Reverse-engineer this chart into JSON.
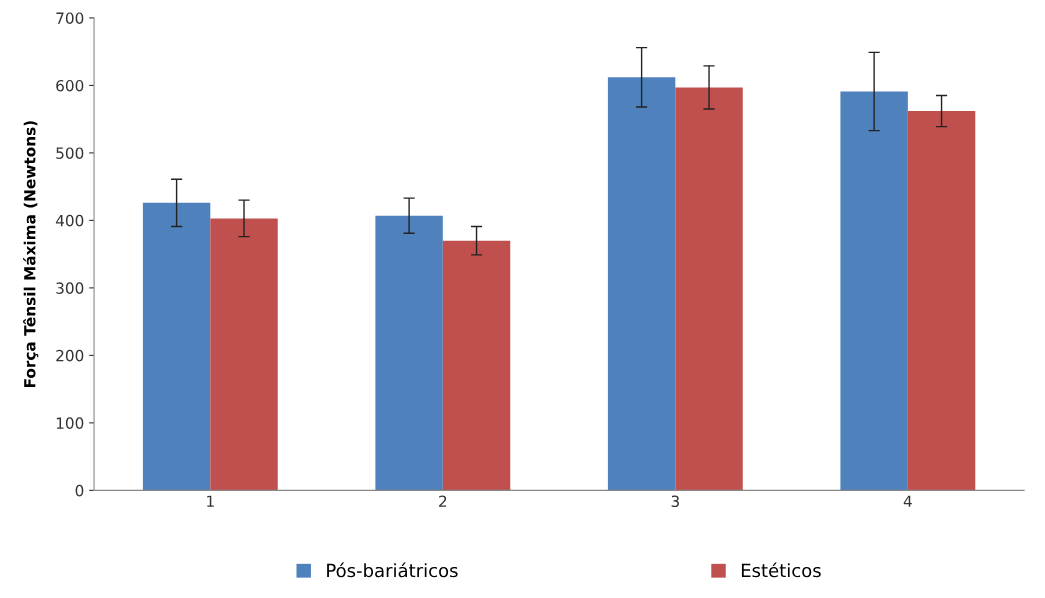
{
  "chart_data": {
    "type": "bar",
    "ylabel": "Força Tênsil Máxima (Newtons)",
    "categories": [
      "1",
      "2",
      "3",
      "4"
    ],
    "series": [
      {
        "name": "Pós-bariátricos",
        "color": "#4f81bd",
        "values": [
          426,
          407,
          612,
          591
        ],
        "errors": [
          35,
          26,
          44,
          58
        ]
      },
      {
        "name": "Estéticos",
        "color": "#c0504d",
        "values": [
          403,
          370,
          597,
          562
        ],
        "errors": [
          27,
          21,
          32,
          23
        ]
      }
    ],
    "ylim": [
      0,
      700
    ],
    "yticks": [
      0,
      100,
      200,
      300,
      400,
      500,
      600,
      700
    ],
    "grid": false,
    "legend": "bottom"
  }
}
